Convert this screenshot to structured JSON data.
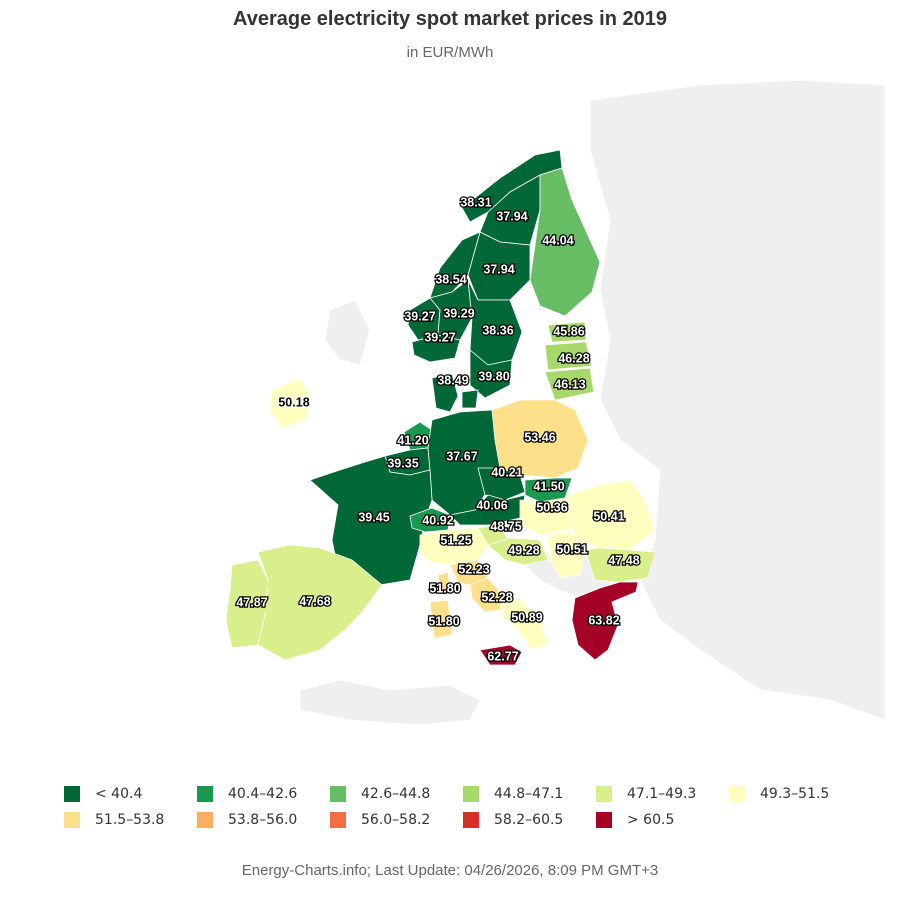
{
  "header": {
    "title": "Average electricity spot market prices in 2019",
    "subtitle": "in EUR/MWh"
  },
  "map": {
    "regions": [
      {
        "name": "NO4",
        "value": "38.31",
        "color": "#006837"
      },
      {
        "name": "SE1",
        "value": "37.94",
        "color": "#006837"
      },
      {
        "name": "FI",
        "value": "44.04",
        "color": "#66bd63"
      },
      {
        "name": "SE2",
        "value": "37.94",
        "color": "#006837"
      },
      {
        "name": "NO3",
        "value": "38.54",
        "color": "#006837"
      },
      {
        "name": "NO5",
        "value": "39.27",
        "color": "#006837"
      },
      {
        "name": "NO1",
        "value": "39.29",
        "color": "#006837"
      },
      {
        "name": "SE3",
        "value": "38.36",
        "color": "#006837"
      },
      {
        "name": "NO2",
        "value": "39.27",
        "color": "#006837"
      },
      {
        "name": "EE",
        "value": "45.86",
        "color": "#a6d96a"
      },
      {
        "name": "LV",
        "value": "46.28",
        "color": "#a6d96a"
      },
      {
        "name": "LT",
        "value": "46.13",
        "color": "#a6d96a"
      },
      {
        "name": "DK1",
        "value": "38.49",
        "color": "#006837"
      },
      {
        "name": "SE4",
        "value": "39.80",
        "color": "#006837"
      },
      {
        "name": "IE",
        "value": "50.18",
        "color": "#ffffbf"
      },
      {
        "name": "PL",
        "value": "53.46",
        "color": "#fee08b"
      },
      {
        "name": "NL",
        "value": "41.20",
        "color": "#1a9850"
      },
      {
        "name": "BE",
        "value": "39.35",
        "color": "#006837"
      },
      {
        "name": "DE",
        "value": "37.67",
        "color": "#006837"
      },
      {
        "name": "CZ",
        "value": "40.21",
        "color": "#006837"
      },
      {
        "name": "SK",
        "value": "41.50",
        "color": "#1a9850"
      },
      {
        "name": "AT",
        "value": "40.06",
        "color": "#006837"
      },
      {
        "name": "HU",
        "value": "50.36",
        "color": "#ffffbf"
      },
      {
        "name": "RO",
        "value": "50.41",
        "color": "#ffffbf"
      },
      {
        "name": "FR",
        "value": "39.45",
        "color": "#006837"
      },
      {
        "name": "CH",
        "value": "40.92",
        "color": "#1a9850"
      },
      {
        "name": "SI",
        "value": "48.75",
        "color": "#d9ef8b"
      },
      {
        "name": "IT-N",
        "value": "51.25",
        "color": "#ffffbf"
      },
      {
        "name": "HR",
        "value": "49.28",
        "color": "#d9ef8b"
      },
      {
        "name": "RS",
        "value": "50.51",
        "color": "#ffffbf"
      },
      {
        "name": "BG",
        "value": "47.48",
        "color": "#d9ef8b"
      },
      {
        "name": "IT-CN",
        "value": "52.23",
        "color": "#fee08b"
      },
      {
        "name": "IT-SARD",
        "value": "51.80",
        "color": "#fee08b"
      },
      {
        "name": "IT-CS",
        "value": "52.28",
        "color": "#fee08b"
      },
      {
        "name": "PT",
        "value": "47.87",
        "color": "#d9ef8b"
      },
      {
        "name": "ES",
        "value": "47.68",
        "color": "#d9ef8b"
      },
      {
        "name": "IT-S",
        "value": "50.89",
        "color": "#ffffbf"
      },
      {
        "name": "GR",
        "value": "63.82",
        "color": "#a50026"
      },
      {
        "name": "IT-SICI",
        "value": "62.77",
        "color": "#a50026"
      }
    ],
    "corsica_label": "51.80"
  },
  "legend": {
    "items": [
      {
        "label": "< 40.4",
        "color": "#006837"
      },
      {
        "label": "40.4–42.6",
        "color": "#1a9850"
      },
      {
        "label": "42.6–44.8",
        "color": "#66bd63"
      },
      {
        "label": "44.8–47.1",
        "color": "#a6d96a"
      },
      {
        "label": "47.1–49.3",
        "color": "#d9ef8b"
      },
      {
        "label": "49.3–51.5",
        "color": "#ffffbf"
      },
      {
        "label": "51.5–53.8",
        "color": "#fee08b"
      },
      {
        "label": "53.8–56.0",
        "color": "#fdae61"
      },
      {
        "label": "56.0–58.2",
        "color": "#f46d43"
      },
      {
        "label": "58.2–60.5",
        "color": "#d73027"
      },
      {
        "label": "> 60.5",
        "color": "#a50026"
      }
    ]
  },
  "footer": {
    "text": "Energy-Charts.info; Last Update: 04/26/2026, 8:09 PM GMT+3"
  }
}
